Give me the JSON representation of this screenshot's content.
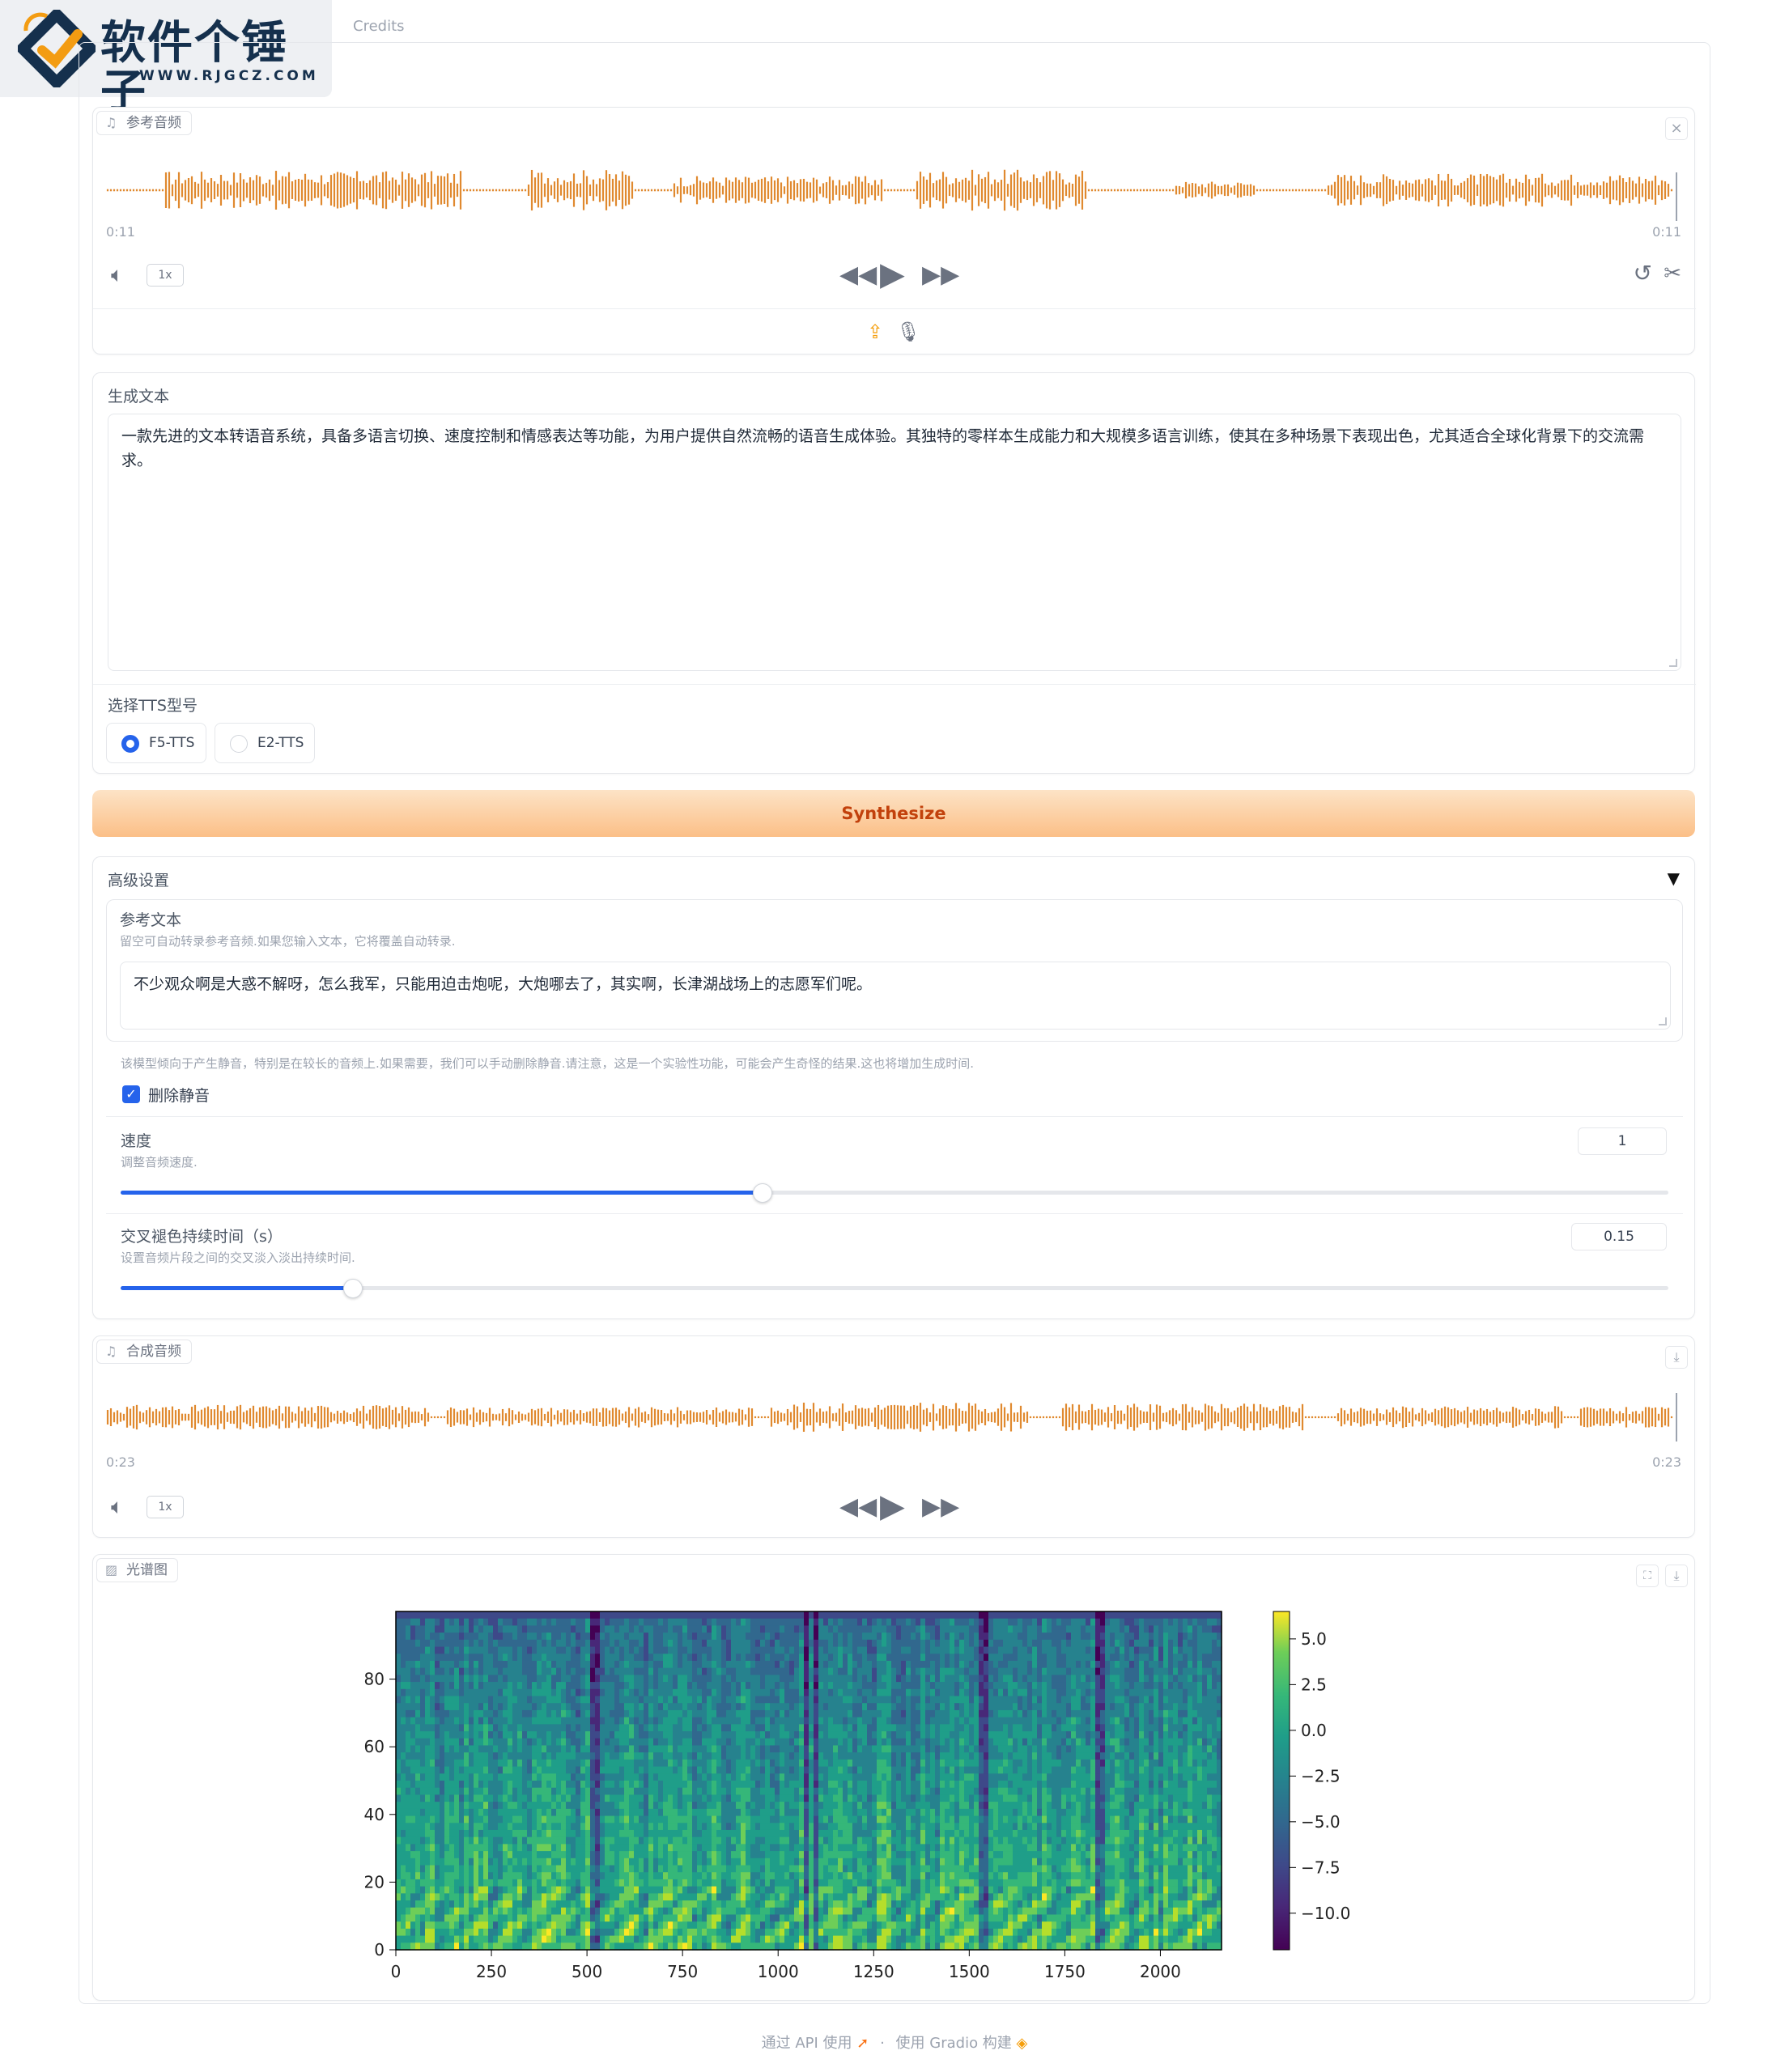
{
  "logo": {
    "name": "软件个锤子",
    "url": "WWW.RJGCZ.COM"
  },
  "tabs": {
    "credits": "Credits"
  },
  "ref_audio": {
    "label": "参考音频",
    "time_start": "0:11",
    "time_end": "0:11",
    "speed": "1x",
    "colors": {
      "wave": "#e0892f"
    }
  },
  "gen_text": {
    "label": "生成文本",
    "value": "一款先进的文本转语音系统，具备多语言切换、速度控制和情感表达等功能，为用户提供自然流畅的语音生成体验。其独特的零样本生成能力和大规模多语言训练，使其在多种场景下表现出色，尤其适合全球化背景下的交流需求。"
  },
  "model_select": {
    "label": "选择TTS型号",
    "options": [
      {
        "label": "F5-TTS",
        "selected": true
      },
      {
        "label": "E2-TTS",
        "selected": false
      }
    ]
  },
  "synthesize": {
    "label": "Synthesize"
  },
  "advanced": {
    "title": "高级设置",
    "toggle": "▼",
    "ref_text": {
      "label": "参考文本",
      "info": "留空可自动转录参考音频.如果您输入文本，它将覆盖自动转录.",
      "value": "不少观众啊是大惑不解呀，怎么我军，只能用迫击炮呢，大炮哪去了，其实啊，长津湖战场上的志愿军们呢。"
    },
    "silence": {
      "info": "该模型倾向于产生静音，特别是在较长的音频上.如果需要，我们可以手动删除静音.请注意，这是一个实验性功能，可能会产生奇怪的结果.这也将增加生成时间.",
      "label": "删除静音",
      "checked": true
    },
    "speed": {
      "label": "速度",
      "info": "调整音频速度.",
      "value": "1",
      "fraction": 0.415
    },
    "crossfade": {
      "label": "交叉褪色持续时间（s）",
      "info": "设置音频片段之间的交叉淡入淡出持续时间.",
      "value": "0.15",
      "fraction": 0.15
    }
  },
  "out_audio": {
    "label": "合成音频",
    "time_start": "0:23",
    "time_end": "0:23",
    "speed": "1x"
  },
  "spectrogram": {
    "label": "光谱图",
    "x_ticks": [
      "0",
      "250",
      "500",
      "750",
      "1000",
      "1250",
      "1500",
      "1750",
      "2000"
    ],
    "y_ticks": [
      "0",
      "20",
      "40",
      "60",
      "80"
    ],
    "colorbar_ticks": [
      "5.0",
      "2.5",
      "0.0",
      "−2.5",
      "−5.0",
      "−7.5",
      "−10.0"
    ]
  },
  "chart_data": {
    "type": "heatmap",
    "title": "",
    "xlabel": "",
    "ylabel": "",
    "xlim": [
      0,
      2160
    ],
    "ylim": [
      0,
      100
    ],
    "colorbar_range": [
      -12,
      6.5
    ],
    "colormap": "viridis"
  },
  "footer": {
    "api": "通过 API 使用",
    "sep": "·",
    "built": "使用 Gradio 构建"
  }
}
